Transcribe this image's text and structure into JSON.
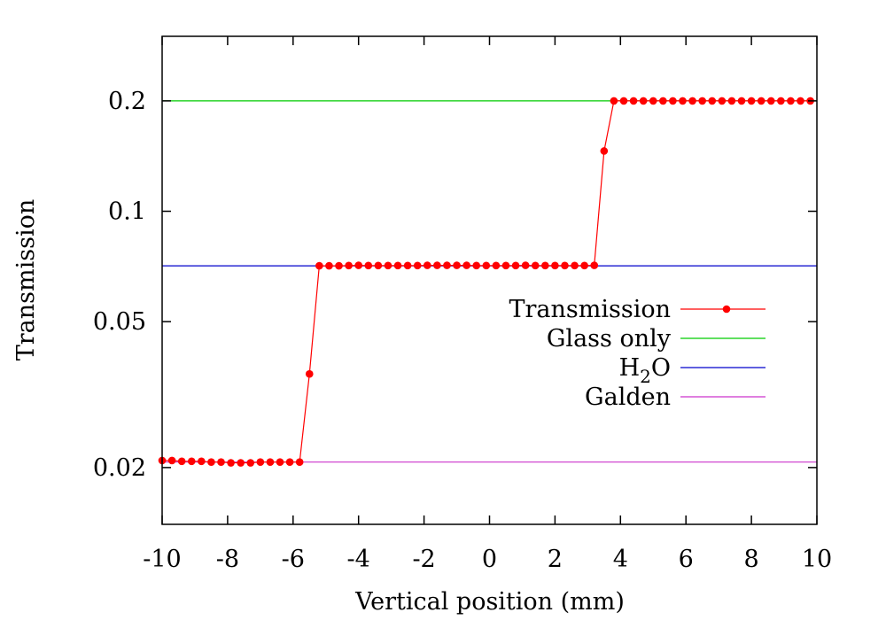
{
  "chart_data": {
    "type": "line",
    "title": "",
    "xlabel": "Vertical position (mm)",
    "ylabel": "Transmission",
    "xlim": [
      -10,
      10
    ],
    "ylim": [
      0.014,
      0.3
    ],
    "yscale": "log",
    "grid": false,
    "legend_position": "right",
    "x_ticks": [
      -10,
      -8,
      -6,
      -4,
      -2,
      0,
      2,
      4,
      6,
      8,
      10
    ],
    "x_tick_labels": [
      "-10",
      "-8",
      "-6",
      "-4",
      "-2",
      "0",
      "2",
      "4",
      "6",
      "8",
      "10"
    ],
    "y_ticks": [
      0.02,
      0.05,
      0.1,
      0.2
    ],
    "y_tick_labels": [
      "0.02",
      "0.05",
      "0.1",
      "0.2"
    ],
    "series": [
      {
        "name": "Transmission",
        "color": "#ff0000",
        "style": "line-points",
        "x": [
          -10,
          -9.7,
          -9.4,
          -9.1,
          -8.8,
          -8.5,
          -8.2,
          -7.9,
          -7.6,
          -7.3,
          -7.0,
          -6.7,
          -6.4,
          -6.1,
          -5.8,
          -5.5,
          -5.2,
          -4.9,
          -4.6,
          -4.3,
          -4.0,
          -3.7,
          -3.4,
          -3.1,
          -2.8,
          -2.5,
          -2.2,
          -1.9,
          -1.6,
          -1.3,
          -1.0,
          -0.7,
          -0.4,
          -0.1,
          0.2,
          0.5,
          0.8,
          1.1,
          1.4,
          1.7,
          2.0,
          2.3,
          2.6,
          2.9,
          3.2,
          3.5,
          3.8,
          4.1,
          4.4,
          4.7,
          5.0,
          5.3,
          5.6,
          5.9,
          6.2,
          6.5,
          6.8,
          7.1,
          7.4,
          7.7,
          8.0,
          8.3,
          8.6,
          8.9,
          9.2,
          9.5,
          9.8
        ],
        "y": [
          0.0209,
          0.0209,
          0.0208,
          0.0208,
          0.0208,
          0.0207,
          0.0207,
          0.0206,
          0.0206,
          0.0206,
          0.0207,
          0.0207,
          0.0207,
          0.0207,
          0.0207,
          0.036,
          0.071,
          0.071,
          0.071,
          0.0711,
          0.0712,
          0.0711,
          0.0711,
          0.0711,
          0.0711,
          0.0711,
          0.0711,
          0.0712,
          0.0712,
          0.0712,
          0.0712,
          0.0712,
          0.0711,
          0.0711,
          0.0711,
          0.0711,
          0.0711,
          0.0712,
          0.0711,
          0.0711,
          0.0711,
          0.0711,
          0.0711,
          0.0711,
          0.0712,
          0.146,
          0.2,
          0.2,
          0.2,
          0.2,
          0.2,
          0.2,
          0.2,
          0.2,
          0.2,
          0.2,
          0.2,
          0.2,
          0.2,
          0.2,
          0.2,
          0.2,
          0.2,
          0.2,
          0.2,
          0.2,
          0.2
        ]
      },
      {
        "name": "Glass only",
        "color": "#00cc00",
        "style": "hline",
        "value": 0.2
      },
      {
        "name": "H2O",
        "color": "#0000cc",
        "style": "hline",
        "value": 0.071
      },
      {
        "name": "Galden",
        "color": "#cc33cc",
        "style": "hline",
        "value": 0.0207
      }
    ]
  }
}
